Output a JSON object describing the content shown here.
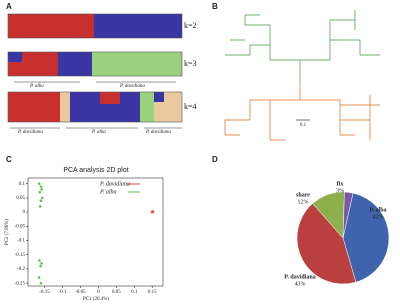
{
  "panels": {
    "a": {
      "label": "A",
      "rows": [
        "k=2",
        "k=3",
        "k=4"
      ],
      "groups_k3": [
        "P. alba",
        "P. davidiana"
      ],
      "groups_k4": [
        "P. davidiana",
        "P. alba",
        "P. davidiana"
      ]
    },
    "b": {
      "label": "B",
      "scale": "0.1"
    },
    "c": {
      "label": "C"
    },
    "d": {
      "label": "D"
    }
  },
  "chart_data": [
    {
      "type": "scatter",
      "title": "PCA analysis 2D plot",
      "x_label": "PC1 (20.4%)",
      "y_label": "PC2 (7.86%)",
      "xlim": [
        -0.196,
        0.18
      ],
      "ylim": [
        -0.26,
        0.12
      ],
      "xticks": [
        -0.15,
        -0.1,
        -0.05,
        0,
        0.05,
        0.1,
        0.15
      ],
      "yticks": [
        -0.25,
        -0.2,
        -0.15,
        -0.1,
        -0.05,
        0,
        0.05,
        0.1
      ],
      "series": [
        {
          "name": "P. davidiana",
          "color": "#e8412c",
          "x": [
            0.15,
            0.152
          ],
          "y": [
            0,
            0.002
          ]
        },
        {
          "name": "P. alba",
          "color": "#5cc24a",
          "x": [
            -0.165,
            -0.16,
            -0.158,
            -0.163,
            -0.156,
            -0.16,
            -0.162,
            -0.164,
            -0.158,
            -0.161,
            -0.165,
            -0.16
          ],
          "y": [
            0.1,
            0.09,
            0.08,
            0.07,
            0.05,
            0.04,
            0.02,
            -0.17,
            -0.18,
            -0.19,
            -0.23,
            -0.25
          ]
        }
      ]
    },
    {
      "type": "pie",
      "categories": [
        "P. alba",
        "P. davidiana",
        "share",
        "fix"
      ],
      "values": [
        42,
        43,
        12,
        3
      ],
      "value_labels": [
        "42%",
        "43%",
        "12%",
        "3%"
      ],
      "colors": [
        "#3f64ad",
        "#b9403f",
        "#8db04c",
        "#7a5aa5"
      ],
      "label_colors": [
        "#3f64ad",
        "#b9403f",
        "#8db04c",
        "#7a5aa5"
      ]
    }
  ]
}
